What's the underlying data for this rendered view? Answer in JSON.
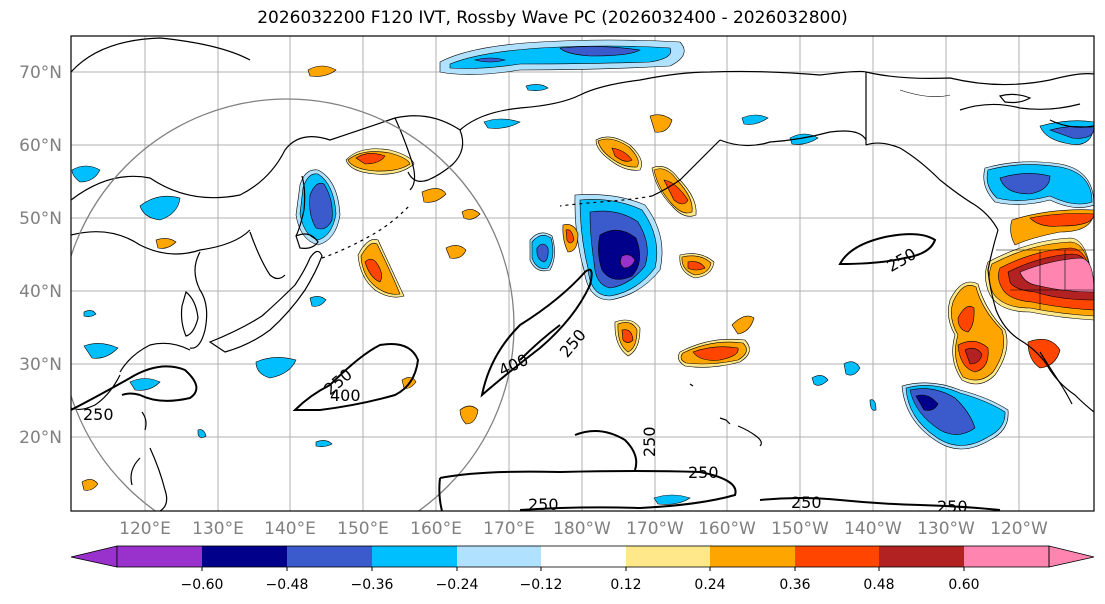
{
  "title": "2026032200 F120 IVT, Rossby Wave PC (2026032400 - 2026032800)",
  "lat_labels": [
    "70°N",
    "60°N",
    "50°N",
    "40°N",
    "30°N",
    "20°N"
  ],
  "lon_labels": [
    "120°E",
    "130°E",
    "140°E",
    "150°E",
    "160°E",
    "170°E",
    "180°W",
    "170°W",
    "160°W",
    "150°W",
    "140°W",
    "130°W",
    "120°W"
  ],
  "colorbar": {
    "colors": [
      "#9932CC",
      "#00008B",
      "#3B5BCC",
      "#00BFFF",
      "#B0E2FF",
      "#FFFFFF",
      "#FFE88A",
      "#FFA500",
      "#FF4500",
      "#B22222",
      "#FF85B0"
    ],
    "ticks": [
      "−0.60",
      "−0.48",
      "−0.36",
      "−0.24",
      "−0.12",
      "0.12",
      "0.24",
      "0.36",
      "0.48",
      "0.60"
    ]
  },
  "contour_labels": [
    "250",
    "400",
    "250",
    "400",
    "250",
    "250",
    "250",
    "250",
    "250",
    "250"
  ],
  "colors": {
    "grid": "#b0b0b0",
    "circle": "#808080",
    "blue_dark": "#00008B",
    "blue_mid": "#3B5BCC",
    "blue": "#00BFFF",
    "blue_light": "#B0E2FF",
    "yellow": "#FFE88A",
    "orange": "#FFA500",
    "red": "#FF4500",
    "darkred": "#B22222",
    "pink": "#FF85B0",
    "purple": "#9932CC"
  }
}
